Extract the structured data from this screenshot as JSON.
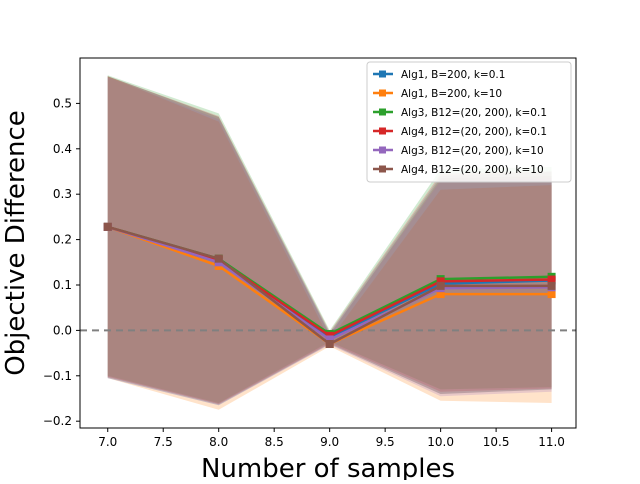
{
  "chart_data": {
    "type": "line",
    "title": "",
    "xlabel": "Number of samples",
    "ylabel": "Objective Difference",
    "xlim": [
      6.75,
      11.22
    ],
    "ylim": [
      -0.215,
      0.6
    ],
    "x": [
      7.0,
      8.0,
      9.0,
      10.0,
      11.0
    ],
    "xticks": [
      "7.0",
      "7.5",
      "8.0",
      "8.5",
      "9.0",
      "9.5",
      "10.0",
      "10.5",
      "11.0"
    ],
    "yticks": [
      "−0.2",
      "−0.1",
      "0.0",
      "0.1",
      "0.2",
      "0.3",
      "0.4",
      "0.5"
    ],
    "reference_line": {
      "y": 0.0,
      "style": "dashed",
      "color": "#808080"
    },
    "grid": false,
    "legend_position": "top-right",
    "series": [
      {
        "name": "Alg1, B=200, k=0.1",
        "color": "#1f77b4",
        "values": [
          0.228,
          0.15,
          -0.015,
          0.103,
          0.11
        ],
        "lower": [
          -0.105,
          -0.165,
          -0.03,
          -0.14,
          -0.13
        ],
        "upper": [
          0.56,
          0.47,
          -0.005,
          0.34,
          0.35
        ]
      },
      {
        "name": "Alg1, B=200, k=10",
        "color": "#ff7f0e",
        "values": [
          0.228,
          0.142,
          -0.03,
          0.08,
          0.08
        ],
        "lower": [
          -0.105,
          -0.175,
          -0.035,
          -0.155,
          -0.16
        ],
        "upper": [
          0.56,
          0.46,
          -0.02,
          0.31,
          0.32
        ]
      },
      {
        "name": "Alg3, B12=(20, 200), k=0.1",
        "color": "#2ca02c",
        "values": [
          0.228,
          0.158,
          -0.008,
          0.113,
          0.118
        ],
        "lower": [
          -0.1,
          -0.16,
          -0.025,
          -0.13,
          -0.125
        ],
        "upper": [
          0.562,
          0.478,
          0.0,
          0.355,
          0.36
        ]
      },
      {
        "name": "Alg4, B12=(20, 200), k=0.1",
        "color": "#d62728",
        "values": [
          0.228,
          0.155,
          -0.012,
          0.108,
          0.112
        ],
        "lower": [
          -0.102,
          -0.162,
          -0.028,
          -0.135,
          -0.128
        ],
        "upper": [
          0.56,
          0.472,
          -0.003,
          0.345,
          0.35
        ]
      },
      {
        "name": "Alg3, B12=(20, 200), k=10",
        "color": "#9467bd",
        "values": [
          0.228,
          0.15,
          -0.02,
          0.093,
          0.095
        ],
        "lower": [
          -0.105,
          -0.165,
          -0.032,
          -0.145,
          -0.135
        ],
        "upper": [
          0.558,
          0.465,
          -0.008,
          0.33,
          0.335
        ]
      },
      {
        "name": "Alg4, B12=(20, 200), k=10",
        "color": "#8c564b",
        "values": [
          0.228,
          0.158,
          -0.03,
          0.098,
          0.098
        ],
        "lower": [
          -0.103,
          -0.163,
          -0.03,
          -0.14,
          -0.13
        ],
        "upper": [
          0.56,
          0.47,
          -0.01,
          0.335,
          0.34
        ]
      }
    ]
  }
}
